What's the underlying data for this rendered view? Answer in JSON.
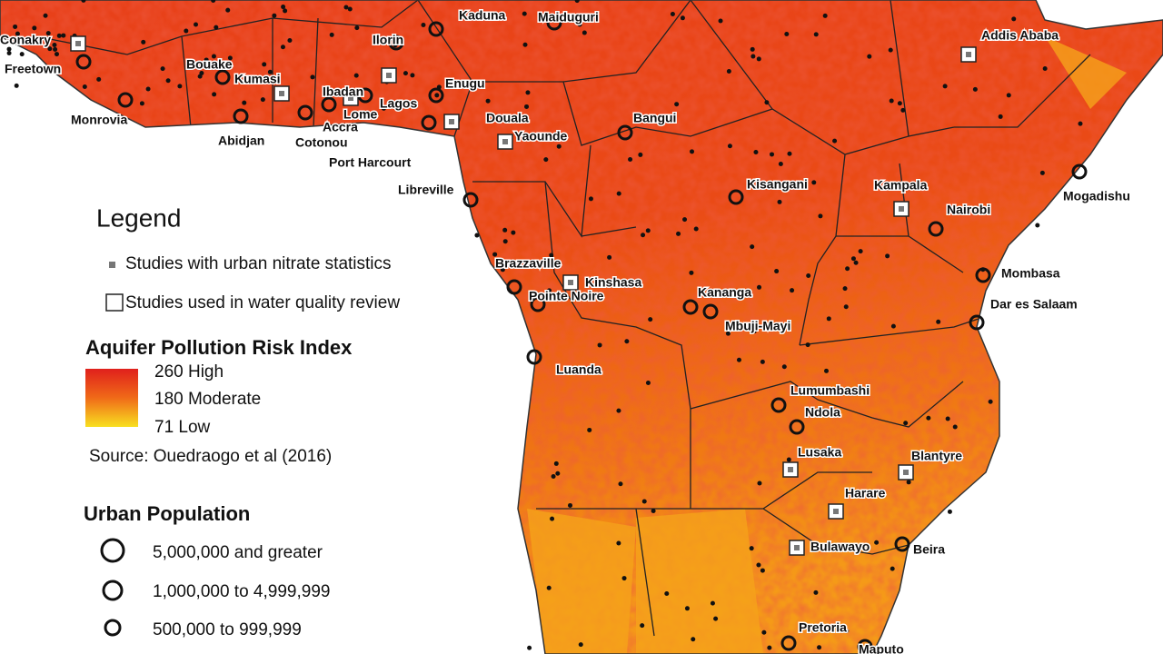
{
  "map": {
    "cities": [
      "Conakry",
      "Freetown",
      "Monrovia",
      "Abidjan",
      "Bouake",
      "Kumasi",
      "Accra",
      "Lome",
      "Cotonou",
      "Lagos",
      "Ibadan",
      "Ilorin",
      "Kaduna",
      "Maiduguri",
      "Enugu",
      "Port Harcourt",
      "Douala",
      "Yaounde",
      "Bangui",
      "Libreville",
      "Addis Ababa",
      "Mogadishu",
      "Kisangani",
      "Kampala",
      "Nairobi",
      "Mombasa",
      "Dar es Salaam",
      "Brazzaville",
      "Kinshasa",
      "Pointe Noire",
      "Kananga",
      "Mbuji-Mayi",
      "Luanda",
      "Lumumbashi",
      "Ndola",
      "Lusaka",
      "Harare",
      "Blantyre",
      "Beira",
      "Bulawayo",
      "Pretoria",
      "Maputo"
    ],
    "legend": {
      "title": "Legend",
      "studies_nitrate": "Studies with urban nitrate statistics",
      "studies_review": "Studies used in water quality review",
      "risk_title": "Aquifer Pollution Risk Index",
      "risk_high": "260 High",
      "risk_moderate": "180 Moderate",
      "risk_low": "71 Low",
      "source": "Source: Ouedraogo et al (2016)",
      "population_title": "Urban Population",
      "population_classes": [
        "5,000,000 and greater",
        "1,000,000 to 4,999,999",
        "500,000 to 999,999"
      ]
    }
  }
}
